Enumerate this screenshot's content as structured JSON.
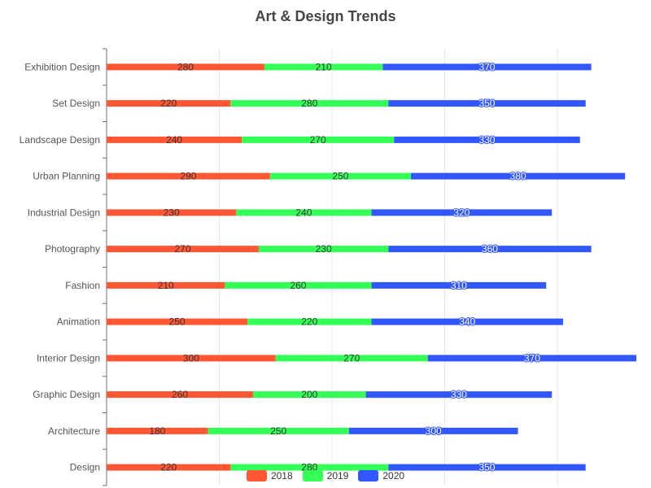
{
  "chart_data": {
    "type": "bar",
    "orientation": "horizontal",
    "stacked": true,
    "title": "Art & Design Trends",
    "xlabel": "",
    "ylabel": "",
    "xlim": [
      0,
      940
    ],
    "grid": true,
    "legend_position": "bottom-center",
    "categories": [
      "Design",
      "Architecture",
      "Graphic Design",
      "Interior Design",
      "Animation",
      "Fashion",
      "Photography",
      "Industrial Design",
      "Urban Planning",
      "Landscape Design",
      "Set Design",
      "Exhibition Design"
    ],
    "series": [
      {
        "name": "2018",
        "color": "#ff5733",
        "values": [
          220,
          180,
          260,
          300,
          250,
          210,
          270,
          230,
          290,
          240,
          220,
          280
        ]
      },
      {
        "name": "2019",
        "color": "#33ff57",
        "values": [
          280,
          250,
          200,
          270,
          220,
          260,
          230,
          240,
          250,
          270,
          280,
          210
        ]
      },
      {
        "name": "2020",
        "color": "#3357ff",
        "values": [
          350,
          300,
          330,
          370,
          340,
          310,
          360,
          320,
          380,
          330,
          350,
          370
        ]
      }
    ]
  }
}
